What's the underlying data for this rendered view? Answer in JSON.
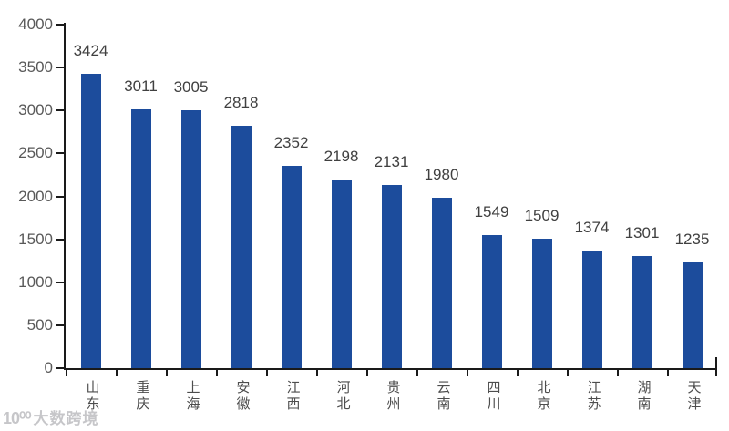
{
  "chart_data": {
    "type": "bar",
    "title": "",
    "xlabel": "",
    "ylabel": "",
    "categories": [
      "山东",
      "重庆",
      "上海",
      "安徽",
      "江西",
      "河北",
      "贵州",
      "云南",
      "四川",
      "北京",
      "江苏",
      "湖南",
      "天津"
    ],
    "values": [
      3424,
      3011,
      3005,
      2818,
      2352,
      2198,
      2131,
      1980,
      1549,
      1509,
      1374,
      1301,
      1235
    ],
    "ylim": [
      0,
      4000
    ],
    "yticks": [
      0,
      500,
      1000,
      1500,
      2000,
      2500,
      3000,
      3500,
      4000
    ],
    "grid": false,
    "legend": null,
    "bar_color": "#1C4C9C",
    "axis_color": "#1a1a1a",
    "value_label_color": "#404040",
    "tick_label_color": "#595959"
  },
  "watermark": {
    "logo": "10⁰⁰",
    "text": "大数跨境"
  }
}
